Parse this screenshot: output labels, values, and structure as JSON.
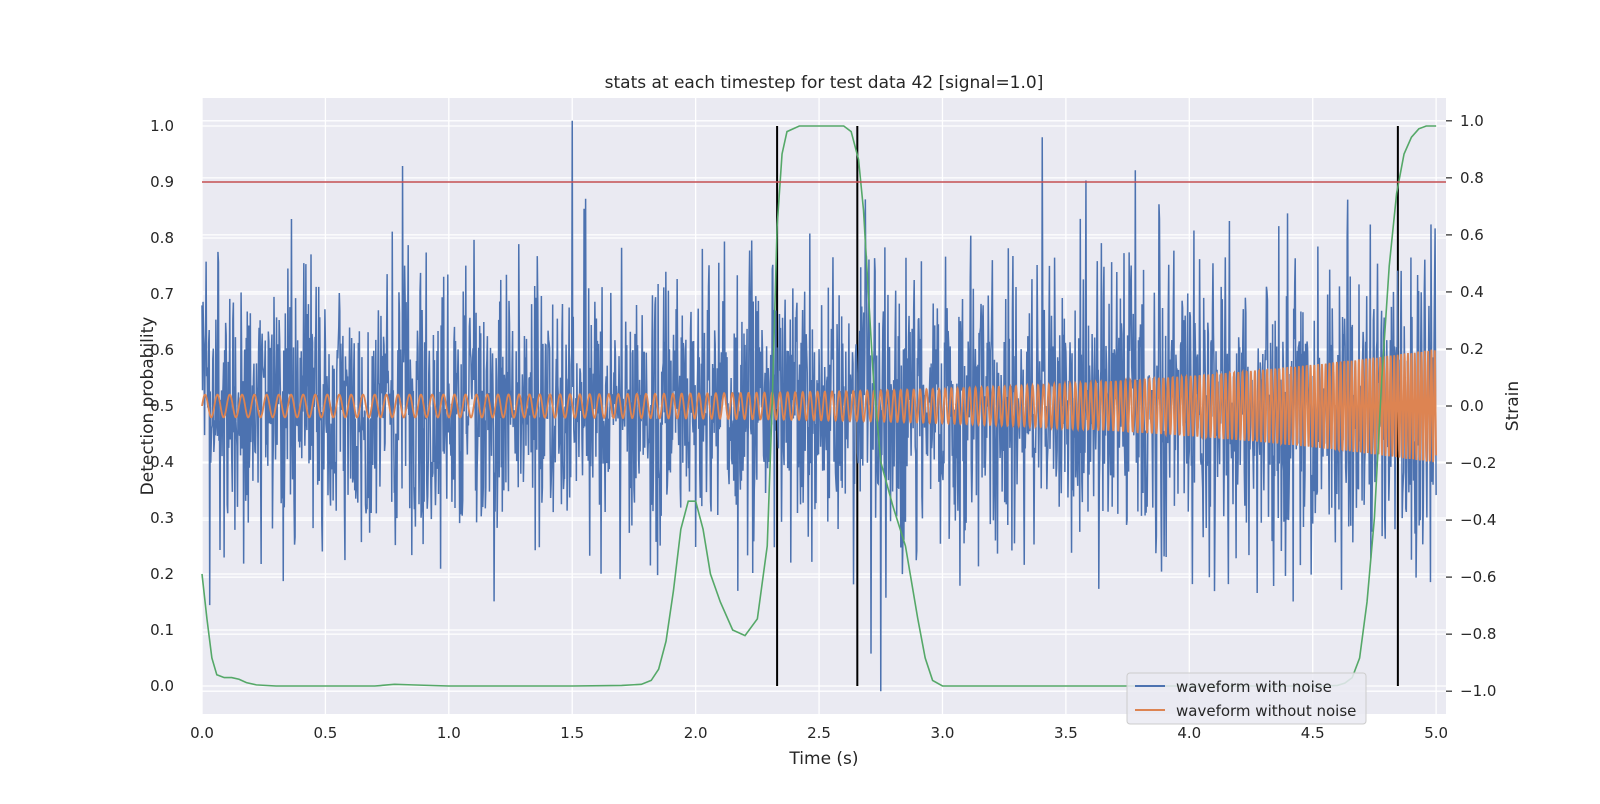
{
  "chart_data": {
    "type": "line",
    "title": "stats at each timestep for test data 42 [signal=1.0]",
    "xlabel": "Time (s)",
    "ylabel_left": "Detection probability",
    "ylabel_right": "Strain",
    "xlim": [
      0.0,
      5.04
    ],
    "ylim_left": [
      -0.05,
      1.05
    ],
    "ylim_right": [
      -1.08,
      1.08
    ],
    "x_ticks": [
      0.0,
      0.5,
      1.0,
      1.5,
      2.0,
      2.5,
      3.0,
      3.5,
      4.0,
      4.5,
      5.0
    ],
    "x_tick_labels": [
      "0.0",
      "0.5",
      "1.0",
      "1.5",
      "2.0",
      "2.5",
      "3.0",
      "3.5",
      "4.0",
      "4.5",
      "5.0"
    ],
    "y_left_ticks": [
      0.0,
      0.1,
      0.2,
      0.3,
      0.4,
      0.5,
      0.6,
      0.7,
      0.8,
      0.9,
      1.0
    ],
    "y_left_tick_labels": [
      "0.0",
      "0.1",
      "0.2",
      "0.3",
      "0.4",
      "0.5",
      "0.6",
      "0.7",
      "0.8",
      "0.9",
      "1.0"
    ],
    "y_right_ticks": [
      -1.0,
      -0.8,
      -0.6,
      -0.4,
      -0.2,
      0.0,
      0.2,
      0.4,
      0.6,
      0.8,
      1.0
    ],
    "y_right_tick_labels": [
      "−1.0",
      "−0.8",
      "−0.6",
      "−0.4",
      "−0.2",
      "0.0",
      "0.2",
      "0.4",
      "0.6",
      "0.8",
      "1.0"
    ],
    "grid": true,
    "legend_position": "lower-right",
    "legend": [
      {
        "label": "waveform with noise",
        "color": "#4c72b0"
      },
      {
        "label": "waveform without noise",
        "color": "#dd8452"
      }
    ],
    "threshold": {
      "value": 0.9,
      "color": "#c44e52"
    },
    "detection_markers": {
      "x": [
        2.33,
        2.655,
        4.845
      ],
      "y_range": [
        0.0,
        1.0
      ],
      "color": "#000000"
    },
    "series": [
      {
        "name": "detection probability",
        "axis": "left",
        "color": "#55a868",
        "x": [
          0.0,
          0.02,
          0.04,
          0.06,
          0.09,
          0.12,
          0.15,
          0.18,
          0.22,
          0.3,
          0.5,
          0.7,
          0.78,
          0.85,
          1.0,
          1.2,
          1.5,
          1.7,
          1.78,
          1.82,
          1.85,
          1.88,
          1.91,
          1.94,
          1.97,
          2.0,
          2.03,
          2.06,
          2.1,
          2.15,
          2.2,
          2.25,
          2.29,
          2.31,
          2.33,
          2.35,
          2.37,
          2.42,
          2.5,
          2.6,
          2.63,
          2.66,
          2.68,
          2.7,
          2.72,
          2.75,
          2.8,
          2.85,
          2.9,
          2.93,
          2.96,
          3.0,
          3.2,
          3.5,
          4.0,
          4.4,
          4.55,
          4.6,
          4.63,
          4.66,
          4.69,
          4.72,
          4.75,
          4.78,
          4.81,
          4.84,
          4.87,
          4.9,
          4.93,
          4.96,
          5.0
        ],
        "values": [
          0.2,
          0.12,
          0.05,
          0.02,
          0.015,
          0.015,
          0.012,
          0.006,
          0.002,
          0.0,
          0.0,
          0.0,
          0.003,
          0.002,
          0.0,
          0.0,
          0.0,
          0.001,
          0.003,
          0.01,
          0.03,
          0.08,
          0.17,
          0.28,
          0.33,
          0.33,
          0.28,
          0.2,
          0.15,
          0.1,
          0.09,
          0.12,
          0.25,
          0.5,
          0.82,
          0.95,
          0.99,
          1.0,
          1.0,
          1.0,
          0.99,
          0.94,
          0.85,
          0.7,
          0.55,
          0.4,
          0.32,
          0.25,
          0.12,
          0.05,
          0.01,
          0.0,
          0.0,
          0.0,
          0.0,
          0.0,
          0.0,
          0.001,
          0.005,
          0.015,
          0.05,
          0.15,
          0.3,
          0.55,
          0.75,
          0.88,
          0.95,
          0.98,
          0.995,
          1.0,
          1.0
        ]
      },
      {
        "name": "waveform with noise",
        "axis": "right",
        "color": "#4c72b0",
        "x_range": [
          0.0,
          5.0
        ],
        "noise_sigma": 0.25,
        "noise_extremes": [
          1.0,
          -1.0
        ]
      },
      {
        "name": "waveform without noise",
        "axis": "right",
        "color": "#dd8452",
        "x_range": [
          0.0,
          5.0
        ],
        "amplitude_start": 0.04,
        "amplitude_end": 0.2,
        "frequency_start_hz": 20,
        "frequency_end_hz": 75
      }
    ]
  }
}
